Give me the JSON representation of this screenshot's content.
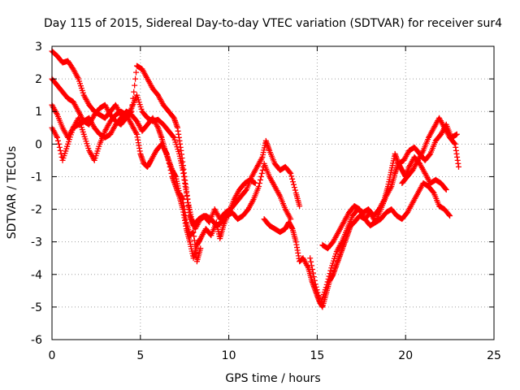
{
  "chart_data": {
    "type": "scatter",
    "title": "Day 115 of 2015, Sidereal Day-to-day VTEC variation (SDTVAR) for receiver sur4",
    "xlabel": "GPS time / hours",
    "ylabel": "SDTVAR / TECUs",
    "xlim": [
      0,
      25
    ],
    "ylim": [
      -6,
      3
    ],
    "xticks": [
      "0",
      "5",
      "10",
      "15",
      "20",
      "25"
    ],
    "yticks": [
      "-6",
      "-5",
      "-4",
      "-3",
      "-2",
      "-1",
      "0",
      "1",
      "2",
      "3"
    ],
    "grid": true,
    "marker": "plus",
    "color": "#ff0000",
    "series": [
      {
        "name": "track-a",
        "points": [
          [
            0,
            2.85
          ],
          [
            0.3,
            2.7
          ],
          [
            0.6,
            2.5
          ],
          [
            0.9,
            2.55
          ],
          [
            1.2,
            2.3
          ],
          [
            1.5,
            2.0
          ],
          [
            1.8,
            1.5
          ],
          [
            2.1,
            1.2
          ],
          [
            2.4,
            1.0
          ],
          [
            2.7,
            0.9
          ],
          [
            3.0,
            0.8
          ],
          [
            3.3,
            1.0
          ],
          [
            3.6,
            1.2
          ],
          [
            3.9,
            0.9
          ],
          [
            4.2,
            0.8
          ],
          [
            4.5,
            1.1
          ],
          [
            4.8,
            1.5
          ],
          [
            5.1,
            1.0
          ],
          [
            5.4,
            0.8
          ],
          [
            5.7,
            0.7
          ],
          [
            6.0,
            0.75
          ],
          [
            6.3,
            0.6
          ],
          [
            6.6,
            0.4
          ],
          [
            6.9,
            0.2
          ],
          [
            7.2,
            -0.3
          ],
          [
            7.4,
            -0.8
          ],
          [
            7.6,
            -1.5
          ],
          [
            7.8,
            -2.2
          ],
          [
            8.0,
            -2.5
          ],
          [
            8.3,
            -2.3
          ],
          [
            8.6,
            -2.2
          ],
          [
            8.9,
            -2.4
          ],
          [
            9.2,
            -2.0
          ],
          [
            9.5,
            -2.3
          ],
          [
            9.8,
            -2.1
          ],
          [
            10.1,
            -2.0
          ],
          [
            10.4,
            -1.8
          ],
          [
            10.7,
            -1.6
          ],
          [
            11.0,
            -1.4
          ],
          [
            11.3,
            -1.0
          ],
          [
            11.6,
            -0.7
          ],
          [
            11.9,
            -0.4
          ],
          [
            12.1,
            0.1
          ],
          [
            12.3,
            -0.2
          ],
          [
            12.6,
            -0.6
          ],
          [
            12.9,
            -0.8
          ],
          [
            13.2,
            -0.7
          ],
          [
            13.5,
            -0.9
          ],
          [
            13.8,
            -1.5
          ],
          [
            14.0,
            -1.9
          ]
        ]
      },
      {
        "name": "track-b",
        "points": [
          [
            0,
            2.0
          ],
          [
            0.3,
            1.8
          ],
          [
            0.6,
            1.6
          ],
          [
            0.9,
            1.4
          ],
          [
            1.2,
            1.3
          ],
          [
            1.5,
            1.0
          ],
          [
            1.8,
            0.7
          ],
          [
            2.1,
            0.6
          ],
          [
            2.4,
            0.9
          ],
          [
            2.7,
            1.1
          ],
          [
            3.0,
            1.2
          ],
          [
            3.3,
            0.9
          ],
          [
            3.6,
            0.7
          ],
          [
            3.9,
            0.6
          ],
          [
            4.2,
            0.8
          ],
          [
            4.5,
            1.0
          ],
          [
            4.8,
            2.4
          ],
          [
            5.1,
            2.3
          ],
          [
            5.4,
            2.0
          ],
          [
            5.7,
            1.7
          ],
          [
            6.0,
            1.5
          ],
          [
            6.3,
            1.2
          ],
          [
            6.6,
            1.0
          ],
          [
            6.9,
            0.8
          ],
          [
            7.1,
            0.5
          ],
          [
            7.3,
            -0.2
          ],
          [
            7.5,
            -1.0
          ],
          [
            7.7,
            -1.8
          ],
          [
            7.9,
            -2.3
          ],
          [
            8.1,
            -2.6
          ],
          [
            8.4,
            -2.3
          ],
          [
            8.7,
            -2.2
          ],
          [
            9.0,
            -2.3
          ],
          [
            9.3,
            -2.5
          ],
          [
            9.6,
            -2.4
          ],
          [
            9.9,
            -2.2
          ],
          [
            10.2,
            -2.1
          ],
          [
            10.5,
            -2.3
          ],
          [
            10.8,
            -2.2
          ],
          [
            11.1,
            -2.0
          ],
          [
            11.4,
            -1.7
          ],
          [
            11.7,
            -1.3
          ],
          [
            12.0,
            -0.6
          ],
          [
            12.3,
            -1.0
          ],
          [
            12.6,
            -1.3
          ],
          [
            12.9,
            -1.6
          ],
          [
            13.2,
            -2.0
          ],
          [
            13.5,
            -2.3
          ]
        ]
      },
      {
        "name": "track-c",
        "points": [
          [
            0,
            1.2
          ],
          [
            0.3,
            0.9
          ],
          [
            0.6,
            0.5
          ],
          [
            0.9,
            0.2
          ],
          [
            1.2,
            0.5
          ],
          [
            1.5,
            0.8
          ],
          [
            1.8,
            0.3
          ],
          [
            2.1,
            -0.2
          ],
          [
            2.4,
            -0.5
          ],
          [
            2.7,
            0.0
          ],
          [
            3.0,
            0.4
          ],
          [
            3.3,
            0.7
          ],
          [
            3.6,
            0.9
          ],
          [
            3.9,
            1.0
          ],
          [
            4.2,
            0.9
          ],
          [
            4.5,
            0.6
          ],
          [
            4.8,
            0.3
          ],
          [
            5.0,
            -0.3
          ],
          [
            5.2,
            -0.6
          ],
          [
            5.4,
            -0.7
          ],
          [
            5.6,
            -0.5
          ],
          [
            5.9,
            -0.2
          ],
          [
            6.2,
            0.0
          ],
          [
            6.5,
            -0.3
          ],
          [
            6.8,
            -1.0
          ],
          [
            7.0,
            -1.3
          ],
          [
            7.2,
            -1.6
          ],
          [
            7.4,
            -2.0
          ],
          [
            7.6,
            -2.6
          ],
          [
            7.8,
            -3.0
          ],
          [
            8.0,
            -3.5
          ],
          [
            8.2,
            -3.1
          ],
          [
            8.4,
            -2.9
          ],
          [
            8.7,
            -2.6
          ],
          [
            9.0,
            -2.8
          ],
          [
            9.3,
            -2.4
          ],
          [
            9.5,
            -2.9
          ],
          [
            9.7,
            -2.5
          ],
          [
            10.0,
            -2.1
          ],
          [
            10.3,
            -1.7
          ],
          [
            10.6,
            -1.4
          ],
          [
            10.9,
            -1.2
          ],
          [
            11.2,
            -1.1
          ],
          [
            11.5,
            -1.2
          ]
        ]
      },
      {
        "name": "track-d",
        "points": [
          [
            0,
            0.5
          ],
          [
            0.3,
            0.2
          ],
          [
            0.6,
            -0.5
          ],
          [
            0.9,
            0.0
          ],
          [
            1.2,
            0.5
          ],
          [
            1.5,
            0.6
          ],
          [
            1.8,
            0.7
          ],
          [
            2.1,
            0.8
          ],
          [
            2.4,
            0.5
          ],
          [
            2.7,
            0.3
          ],
          [
            3.0,
            0.2
          ],
          [
            3.3,
            0.3
          ],
          [
            3.6,
            0.6
          ],
          [
            3.9,
            0.8
          ],
          [
            4.2,
            1.0
          ],
          [
            4.5,
            0.9
          ],
          [
            4.8,
            0.7
          ],
          [
            5.1,
            0.4
          ],
          [
            5.4,
            0.6
          ],
          [
            5.7,
            0.8
          ],
          [
            6.0,
            0.5
          ],
          [
            6.2,
            0.2
          ],
          [
            6.4,
            -0.2
          ],
          [
            6.6,
            -0.5
          ],
          [
            6.8,
            -0.8
          ],
          [
            7.0,
            -1.0
          ],
          [
            7.2,
            -1.5
          ],
          [
            7.4,
            -1.7
          ],
          [
            7.6,
            -2.4
          ],
          [
            7.8,
            -2.8
          ],
          [
            8.0,
            -2.7
          ],
          [
            8.2,
            -3.6
          ],
          [
            8.4,
            -3.2
          ]
        ]
      },
      {
        "name": "track-e",
        "points": [
          [
            12.0,
            -2.3
          ],
          [
            12.3,
            -2.5
          ],
          [
            12.6,
            -2.6
          ],
          [
            12.9,
            -2.7
          ],
          [
            13.2,
            -2.6
          ],
          [
            13.4,
            -2.4
          ],
          [
            13.6,
            -2.6
          ],
          [
            13.8,
            -3.0
          ],
          [
            14.0,
            -3.6
          ],
          [
            14.2,
            -3.5
          ],
          [
            14.5,
            -3.8
          ],
          [
            14.7,
            -4.2
          ],
          [
            14.9,
            -4.5
          ],
          [
            15.1,
            -4.8
          ],
          [
            15.3,
            -5.0
          ],
          [
            15.5,
            -4.6
          ],
          [
            15.7,
            -4.2
          ],
          [
            15.9,
            -4.0
          ],
          [
            16.1,
            -3.7
          ],
          [
            16.3,
            -3.4
          ],
          [
            16.5,
            -3.1
          ],
          [
            16.7,
            -2.8
          ],
          [
            16.9,
            -2.5
          ],
          [
            17.1,
            -2.4
          ],
          [
            17.4,
            -2.2
          ],
          [
            17.7,
            -2.3
          ],
          [
            18.0,
            -2.1
          ],
          [
            18.3,
            -2.4
          ],
          [
            18.6,
            -2.3
          ],
          [
            18.9,
            -2.1
          ],
          [
            19.2,
            -2.0
          ],
          [
            19.5,
            -2.2
          ],
          [
            19.8,
            -2.3
          ],
          [
            20.1,
            -2.1
          ],
          [
            20.4,
            -1.8
          ],
          [
            20.7,
            -1.5
          ],
          [
            21.0,
            -1.2
          ],
          [
            21.3,
            -1.3
          ],
          [
            21.6,
            -1.5
          ],
          [
            21.9,
            -1.9
          ],
          [
            22.2,
            -2.0
          ],
          [
            22.5,
            -2.2
          ]
        ]
      },
      {
        "name": "track-f",
        "points": [
          [
            15.3,
            -3.1
          ],
          [
            15.6,
            -3.2
          ],
          [
            15.9,
            -3.0
          ],
          [
            16.2,
            -2.7
          ],
          [
            16.5,
            -2.4
          ],
          [
            16.8,
            -2.1
          ],
          [
            17.1,
            -1.9
          ],
          [
            17.4,
            -2.0
          ],
          [
            17.7,
            -2.3
          ],
          [
            18.0,
            -2.5
          ],
          [
            18.3,
            -2.4
          ],
          [
            18.6,
            -2.0
          ],
          [
            18.9,
            -1.6
          ],
          [
            19.2,
            -1.3
          ],
          [
            19.4,
            -0.9
          ],
          [
            19.6,
            -0.6
          ],
          [
            19.8,
            -0.8
          ],
          [
            20.0,
            -1.0
          ],
          [
            20.2,
            -0.7
          ],
          [
            20.5,
            -0.4
          ],
          [
            20.8,
            -0.6
          ],
          [
            21.1,
            -0.9
          ],
          [
            21.4,
            -1.2
          ],
          [
            21.7,
            -1.1
          ],
          [
            22.0,
            -1.2
          ],
          [
            22.3,
            -1.4
          ]
        ]
      },
      {
        "name": "track-g",
        "points": [
          [
            14.6,
            -3.5
          ],
          [
            14.9,
            -4.3
          ],
          [
            15.2,
            -4.9
          ],
          [
            15.5,
            -4.4
          ],
          [
            15.8,
            -3.8
          ],
          [
            16.1,
            -3.3
          ],
          [
            16.4,
            -3.0
          ],
          [
            16.7,
            -2.6
          ],
          [
            17.0,
            -2.2
          ],
          [
            17.3,
            -2.0
          ],
          [
            17.6,
            -2.1
          ],
          [
            17.9,
            -2.0
          ],
          [
            18.2,
            -2.2
          ],
          [
            18.5,
            -2.0
          ],
          [
            18.8,
            -1.7
          ],
          [
            19.0,
            -1.3
          ],
          [
            19.2,
            -0.8
          ],
          [
            19.4,
            -0.3
          ],
          [
            19.6,
            -0.6
          ],
          [
            19.9,
            -0.5
          ],
          [
            20.2,
            -0.2
          ],
          [
            20.5,
            -0.1
          ],
          [
            20.8,
            -0.3
          ],
          [
            21.1,
            -0.5
          ],
          [
            21.4,
            -0.3
          ],
          [
            21.7,
            0.1
          ],
          [
            22.0,
            0.3
          ],
          [
            22.3,
            0.6
          ],
          [
            22.6,
            0.2
          ],
          [
            22.9,
            0.3
          ]
        ]
      },
      {
        "name": "track-h",
        "points": [
          [
            19.8,
            -1.2
          ],
          [
            20.1,
            -1.0
          ],
          [
            20.4,
            -0.8
          ],
          [
            20.7,
            -0.5
          ],
          [
            21.0,
            -0.2
          ],
          [
            21.3,
            0.2
          ],
          [
            21.6,
            0.5
          ],
          [
            21.9,
            0.8
          ],
          [
            22.2,
            0.5
          ],
          [
            22.5,
            0.2
          ],
          [
            22.8,
            0.0
          ],
          [
            23.0,
            -0.7
          ]
        ]
      }
    ]
  }
}
